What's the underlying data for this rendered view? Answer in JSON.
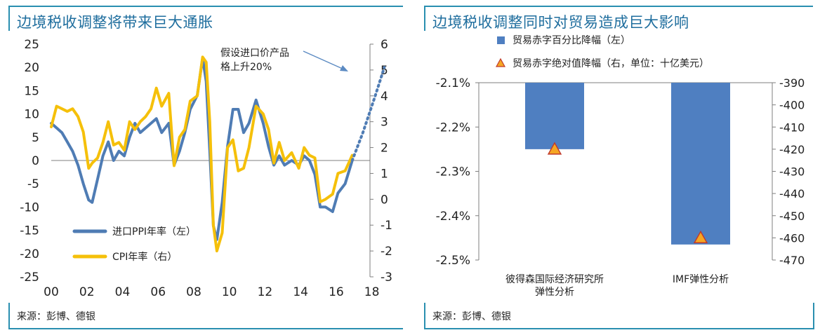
{
  "left_panel": {
    "title": "边境税收调整将带来巨大通胀",
    "source": "来源：彭博、德银"
  },
  "right_panel": {
    "title": "边境税收调整同时对贸易造成巨大影响",
    "source": "来源：彭博、德银"
  },
  "colors": {
    "frame": "#2a8fb0",
    "title": "#1f6e9e",
    "ppi": "#4f7cb4",
    "cpi": "#f5c00a",
    "bar": "#4f7fc1",
    "marker_fill": "#f5a623",
    "marker_edge": "#c0392b",
    "arrow": "#5b8ac2"
  },
  "chart_data": [
    {
      "type": "line",
      "title": "边境税收调整将带来巨大通胀",
      "x_ticks": [
        "00",
        "02",
        "04",
        "06",
        "08",
        "10",
        "12",
        "14",
        "16",
        "18"
      ],
      "xlim": [
        2000,
        2019
      ],
      "y_left": {
        "ticks": [
          "25",
          "20",
          "15",
          "10",
          "5",
          "0",
          "-5",
          "-10",
          "-15",
          "-20",
          "-25"
        ],
        "ylim": [
          -25,
          25
        ]
      },
      "y_right": {
        "ticks": [
          "6",
          "5",
          "4",
          "3",
          "2",
          "1",
          "0",
          "-1",
          "-2",
          "-3"
        ],
        "ylim": [
          -3,
          6
        ]
      },
      "annotation": {
        "lines": [
          "假设进口价产品",
          "格上升20%"
        ]
      },
      "legend_placement": "bottom-left",
      "series": [
        {
          "name": "进口PPI年率（左）",
          "axis": "left",
          "points": [
            [
              2000.0,
              8
            ],
            [
              2000.3,
              7
            ],
            [
              2000.6,
              6
            ],
            [
              2000.9,
              4
            ],
            [
              2001.2,
              2
            ],
            [
              2001.5,
              -1
            ],
            [
              2001.8,
              -5
            ],
            [
              2002.1,
              -8.5
            ],
            [
              2002.3,
              -9
            ],
            [
              2002.6,
              -4
            ],
            [
              2002.9,
              1
            ],
            [
              2003.2,
              4
            ],
            [
              2003.5,
              0
            ],
            [
              2003.8,
              2
            ],
            [
              2004.1,
              1
            ],
            [
              2004.4,
              5
            ],
            [
              2004.7,
              8
            ],
            [
              2005.0,
              6
            ],
            [
              2005.3,
              7
            ],
            [
              2005.6,
              8
            ],
            [
              2005.9,
              9
            ],
            [
              2006.2,
              6
            ],
            [
              2006.6,
              8
            ],
            [
              2006.9,
              -1
            ],
            [
              2007.2,
              2
            ],
            [
              2007.5,
              6
            ],
            [
              2007.8,
              11
            ],
            [
              2008.2,
              14
            ],
            [
              2008.5,
              22
            ],
            [
              2008.7,
              17
            ],
            [
              2008.9,
              2
            ],
            [
              2009.1,
              -14
            ],
            [
              2009.3,
              -17
            ],
            [
              2009.6,
              -9
            ],
            [
              2009.9,
              3
            ],
            [
              2010.2,
              11
            ],
            [
              2010.5,
              11
            ],
            [
              2010.8,
              6
            ],
            [
              2011.1,
              8
            ],
            [
              2011.5,
              13
            ],
            [
              2011.9,
              8
            ],
            [
              2012.2,
              3
            ],
            [
              2012.5,
              -1
            ],
            [
              2012.8,
              1
            ],
            [
              2013.1,
              -1
            ],
            [
              2013.5,
              0
            ],
            [
              2013.9,
              -1
            ],
            [
              2014.2,
              1
            ],
            [
              2014.5,
              0
            ],
            [
              2014.8,
              -3
            ],
            [
              2015.1,
              -10
            ],
            [
              2015.4,
              -10
            ],
            [
              2015.8,
              -11
            ],
            [
              2016.1,
              -7
            ],
            [
              2016.5,
              -5
            ],
            [
              2016.9,
              0
            ]
          ]
        },
        {
          "name": "CPI年率（右）",
          "axis": "right",
          "points": [
            [
              2000.0,
              2.8
            ],
            [
              2000.3,
              3.6
            ],
            [
              2000.6,
              3.5
            ],
            [
              2000.9,
              3.4
            ],
            [
              2001.2,
              3.5
            ],
            [
              2001.5,
              3.2
            ],
            [
              2001.8,
              2.6
            ],
            [
              2002.1,
              1.2
            ],
            [
              2002.3,
              1.4
            ],
            [
              2002.6,
              1.6
            ],
            [
              2002.9,
              2.2
            ],
            [
              2003.2,
              3.0
            ],
            [
              2003.5,
              2.1
            ],
            [
              2003.8,
              2.2
            ],
            [
              2004.1,
              1.9
            ],
            [
              2004.4,
              3.0
            ],
            [
              2004.7,
              2.7
            ],
            [
              2005.0,
              3.0
            ],
            [
              2005.3,
              3.2
            ],
            [
              2005.6,
              3.5
            ],
            [
              2005.9,
              4.3
            ],
            [
              2006.2,
              3.6
            ],
            [
              2006.6,
              4.1
            ],
            [
              2006.9,
              1.3
            ],
            [
              2007.2,
              2.4
            ],
            [
              2007.5,
              2.7
            ],
            [
              2007.8,
              3.8
            ],
            [
              2008.2,
              4.0
            ],
            [
              2008.5,
              5.5
            ],
            [
              2008.7,
              5.3
            ],
            [
              2008.9,
              3.0
            ],
            [
              2009.1,
              -1.0
            ],
            [
              2009.3,
              -2.0
            ],
            [
              2009.6,
              -1.3
            ],
            [
              2009.9,
              2.0
            ],
            [
              2010.2,
              2.3
            ],
            [
              2010.5,
              1.1
            ],
            [
              2010.8,
              1.2
            ],
            [
              2011.1,
              2.0
            ],
            [
              2011.5,
              3.6
            ],
            [
              2011.9,
              3.3
            ],
            [
              2012.2,
              2.7
            ],
            [
              2012.5,
              1.4
            ],
            [
              2012.8,
              2.2
            ],
            [
              2013.1,
              1.5
            ],
            [
              2013.5,
              1.8
            ],
            [
              2013.9,
              1.2
            ],
            [
              2014.2,
              2.0
            ],
            [
              2014.5,
              1.7
            ],
            [
              2014.8,
              1.6
            ],
            [
              2015.1,
              -0.1
            ],
            [
              2015.4,
              0.0
            ],
            [
              2015.8,
              0.2
            ],
            [
              2016.1,
              1.0
            ],
            [
              2016.5,
              1.1
            ],
            [
              2016.9,
              1.7
            ]
          ]
        },
        {
          "name": "",
          "axis": "left",
          "style": "dotted",
          "points": [
            [
              2016.9,
              0
            ],
            [
              2017.5,
              6
            ],
            [
              2018.2,
              14
            ],
            [
              2018.7,
              20
            ]
          ]
        }
      ]
    },
    {
      "type": "bar",
      "title": "边境税收调整同时对贸易造成巨大影响",
      "categories": [
        [
          "彼得森国际经济研究所",
          "弹性分析"
        ],
        [
          "IMF弹性分析"
        ]
      ],
      "series": [
        {
          "name": "贸易赤字百分比降幅（左）",
          "axis": "left",
          "kind": "bar",
          "values": [
            -2.25,
            -2.465
          ]
        },
        {
          "name": "贸易赤字绝对值降幅（右，单位：十亿美元）",
          "axis": "right",
          "kind": "marker",
          "values": [
            -420,
            -460
          ]
        }
      ],
      "y_left": {
        "ticks": [
          "-2.1%",
          "-2.2%",
          "-2.3%",
          "-2.4%",
          "-2.5%"
        ],
        "ylim": [
          -2.5,
          -2.1
        ]
      },
      "y_right": {
        "ticks": [
          "-390",
          "-400",
          "-410",
          "-420",
          "-430",
          "-440",
          "-450",
          "-460",
          "-470"
        ],
        "ylim": [
          -470,
          -390
        ]
      },
      "legend_placement": "top"
    }
  ]
}
